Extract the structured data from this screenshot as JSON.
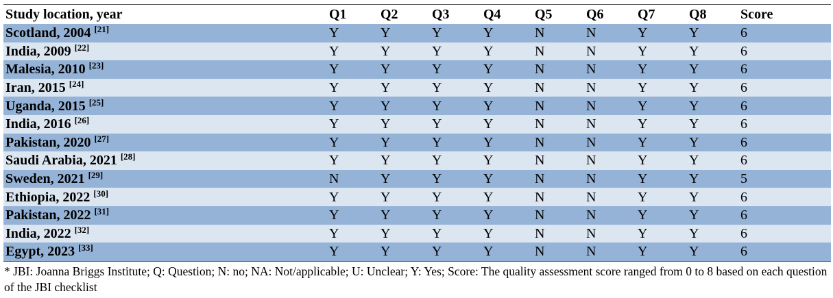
{
  "table": {
    "header": [
      "Study location, year",
      "Q1",
      "Q2",
      "Q3",
      "Q4",
      "Q5",
      "Q6",
      "Q7",
      "Q8",
      "Score"
    ],
    "rows": [
      {
        "study": "Scotland, 2004",
        "ref": "[21]",
        "answers": [
          "Y",
          "Y",
          "Y",
          "Y",
          "N",
          "N",
          "Y",
          "Y"
        ],
        "score": 6
      },
      {
        "study": "India, 2009",
        "ref": "[22]",
        "answers": [
          "Y",
          "Y",
          "Y",
          "Y",
          "N",
          "N",
          "Y",
          "Y"
        ],
        "score": 6
      },
      {
        "study": "Malesia, 2010",
        "ref": "[23]",
        "answers": [
          "Y",
          "Y",
          "Y",
          "Y",
          "N",
          "N",
          "Y",
          "Y"
        ],
        "score": 6
      },
      {
        "study": "Iran, 2015",
        "ref": "[24]",
        "answers": [
          "Y",
          "Y",
          "Y",
          "Y",
          "N",
          "N",
          "Y",
          "Y"
        ],
        "score": 6
      },
      {
        "study": "Uganda, 2015",
        "ref": "[25]",
        "answers": [
          "Y",
          "Y",
          "Y",
          "Y",
          "N",
          "N",
          "Y",
          "Y"
        ],
        "score": 6
      },
      {
        "study": "India, 2016",
        "ref": "[26]",
        "answers": [
          "Y",
          "Y",
          "Y",
          "Y",
          "N",
          "N",
          "Y",
          "Y"
        ],
        "score": 6
      },
      {
        "study": "Pakistan, 2020",
        "ref": "[27]",
        "answers": [
          "Y",
          "Y",
          "Y",
          "Y",
          "N",
          "N",
          "Y",
          "Y"
        ],
        "score": 6
      },
      {
        "study": "Saudi Arabia, 2021",
        "ref": "[28]",
        "answers": [
          "Y",
          "Y",
          "Y",
          "Y",
          "N",
          "N",
          "Y",
          "Y"
        ],
        "score": 6
      },
      {
        "study": "Sweden, 2021",
        "ref": "[29]",
        "answers": [
          "N",
          "Y",
          "Y",
          "Y",
          "N",
          "N",
          "Y",
          "Y"
        ],
        "score": 5
      },
      {
        "study": "Ethiopia, 2022",
        "ref": "[30]",
        "answers": [
          "Y",
          "Y",
          "Y",
          "Y",
          "N",
          "N",
          "Y",
          "Y"
        ],
        "score": 6
      },
      {
        "study": "Pakistan, 2022",
        "ref": "[31]",
        "answers": [
          "Y",
          "Y",
          "Y",
          "Y",
          "N",
          "N",
          "Y",
          "Y"
        ],
        "score": 6
      },
      {
        "study": "India, 2022",
        "ref": "[32]",
        "answers": [
          "Y",
          "Y",
          "Y",
          "Y",
          "N",
          "N",
          "Y",
          "Y"
        ],
        "score": 6
      },
      {
        "study": "Egypt, 2023",
        "ref": "[33]",
        "answers": [
          "Y",
          "Y",
          "Y",
          "Y",
          "N",
          "N",
          "Y",
          "Y"
        ],
        "score": 6
      }
    ],
    "footnote": "* JBI: Joanna Briggs Institute; Q: Question; N: no; NA: Not/applicable; U: Unclear; Y: Yes; Score: The quality assessment score ranged from 0 to 8 based on each question of the JBI checklist"
  }
}
